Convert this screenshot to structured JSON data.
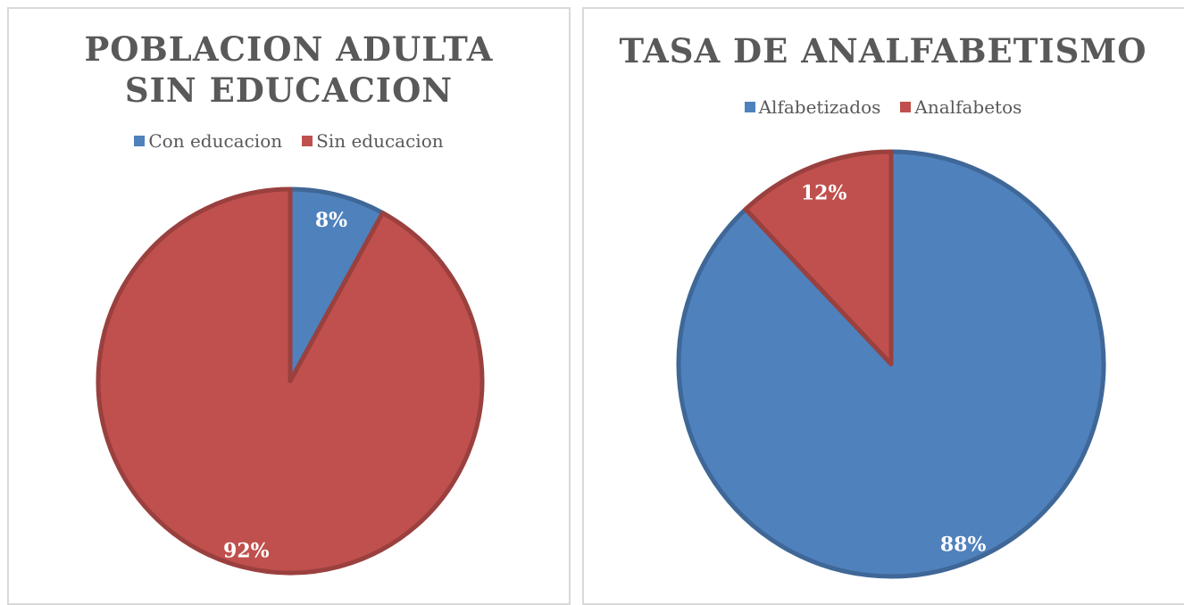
{
  "chart_data": [
    {
      "type": "pie",
      "title": "POBLACION ADULTA SIN EDUCACION",
      "categories": [
        "Con educacion",
        "Sin educacion"
      ],
      "values": [
        8,
        92
      ],
      "value_labels": [
        "8%",
        "92%"
      ],
      "colors": [
        "#4f81bd",
        "#c0504d"
      ],
      "legend": "top"
    },
    {
      "type": "pie",
      "title": "TASA DE ANALFABETISMO",
      "categories": [
        "Alfabetizados",
        "Analfabetos"
      ],
      "values": [
        88,
        12
      ],
      "value_labels": [
        "88%",
        "12%"
      ],
      "colors": [
        "#4f81bd",
        "#c0504d"
      ],
      "legend": "top"
    }
  ]
}
